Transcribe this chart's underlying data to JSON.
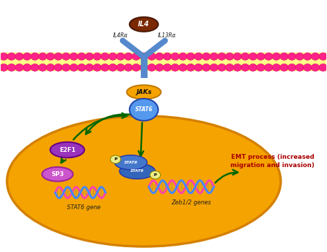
{
  "bg_color": "#ffffff",
  "cell_color": "#f5a300",
  "cell_edge_color": "#d48000",
  "membrane_bg": "#ffff99",
  "membrane_blob_color": "#ff2288",
  "membrane_blob_edge": "#cc0055",
  "receptor_color": "#5588cc",
  "il4_color": "#7a2800",
  "il4_label": "IL4",
  "jaks_color": "#f5a300",
  "jaks_label": "JAKs",
  "stat6_color": "#5599ee",
  "stat6_label": "STAT6",
  "e2f1_color": "#9933bb",
  "e2f1_label": "E2F1",
  "sp3_color": "#cc55cc",
  "sp3_label": "SP3",
  "stat6_gene_label": "STAT6 gene",
  "zeb_gene_label": "Zeb1/2 genes",
  "emt_label": "EMT process (increased\nmigration and invasion)",
  "emt_color": "#aa0000",
  "arrow_color": "#006600",
  "dna_color1": "#ff44aa",
  "dna_color2": "#ffcc00",
  "dna_color3": "#4488ff",
  "figsize": [
    4.74,
    3.65
  ],
  "dpi": 100
}
